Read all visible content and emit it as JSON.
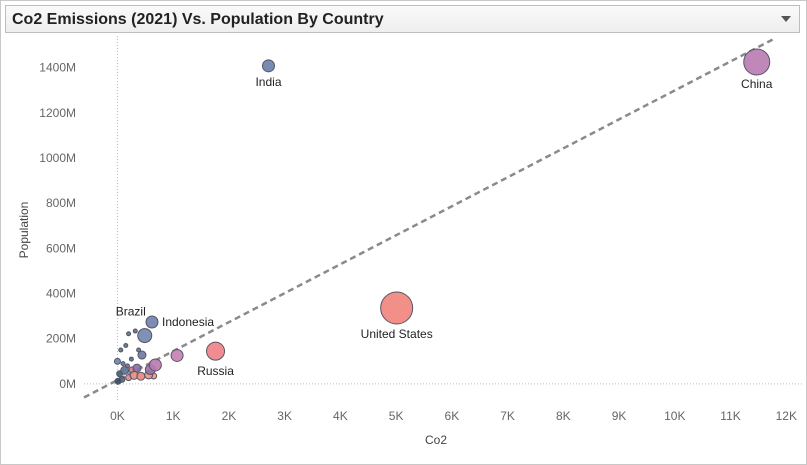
{
  "header": {
    "title": "Co2 Emissions (2021) Vs. Population By Country"
  },
  "chart_data": {
    "type": "scatter",
    "title": "Co2 Emissions (2021) Vs. Population By Country",
    "xlabel": "Co2",
    "ylabel": "Population",
    "xlim": [
      -600,
      12300
    ],
    "ylim": [
      -80,
      1540
    ],
    "x_ticks": [
      0,
      1000,
      2000,
      3000,
      4000,
      5000,
      6000,
      7000,
      8000,
      9000,
      10000,
      11000,
      12000
    ],
    "x_tick_labels": [
      "0K",
      "1K",
      "2K",
      "3K",
      "4K",
      "5K",
      "6K",
      "7K",
      "8K",
      "9K",
      "10K",
      "11K",
      "12K"
    ],
    "y_ticks": [
      0,
      200,
      400,
      600,
      800,
      1000,
      1200,
      1400
    ],
    "y_tick_labels": [
      "0M",
      "200M",
      "400M",
      "600M",
      "800M",
      "1000M",
      "1200M",
      "1400M"
    ],
    "grid": false,
    "trend_line": {
      "x": [
        -600,
        11800
      ],
      "y": [
        -60,
        1530
      ],
      "style": "dashed",
      "color": "#8a8a8a"
    },
    "points": [
      {
        "label": "China",
        "x": 11470,
        "y": 1425,
        "size": 13,
        "color": "#b87bb0"
      },
      {
        "label": "India",
        "x": 2710,
        "y": 1408,
        "size": 6,
        "color": "#6b7ea8"
      },
      {
        "label": "United States",
        "x": 5010,
        "y": 336,
        "size": 16,
        "color": "#f1837b"
      },
      {
        "label": "Russia",
        "x": 1760,
        "y": 145,
        "size": 9,
        "color": "#ee7f86"
      },
      {
        "label": "Indonesia",
        "x": 620,
        "y": 274,
        "size": 6,
        "color": "#6f80aa"
      },
      {
        "label": "Brazil",
        "x": 490,
        "y": 214,
        "size": 7,
        "color": "#7185ad"
      },
      {
        "label": "",
        "x": 1070,
        "y": 126,
        "size": 6,
        "color": "#c77fb4"
      },
      {
        "label": "",
        "x": 680,
        "y": 84,
        "size": 6,
        "color": "#b87ab0"
      },
      {
        "label": "",
        "x": 590,
        "y": 64,
        "size": 5,
        "color": "#9a6fa8"
      },
      {
        "label": "",
        "x": 440,
        "y": 128,
        "size": 4,
        "color": "#6b78a2"
      },
      {
        "label": "",
        "x": 350,
        "y": 70,
        "size": 4,
        "color": "#8a6aa0"
      },
      {
        "label": "",
        "x": 300,
        "y": 38,
        "size": 4,
        "color": "#e6897e"
      },
      {
        "label": "",
        "x": 420,
        "y": 34,
        "size": 4,
        "color": "#e58a7c"
      },
      {
        "label": "",
        "x": 560,
        "y": 40,
        "size": 4,
        "color": "#f0927f"
      },
      {
        "label": "",
        "x": 650,
        "y": 35,
        "size": 3,
        "color": "#e79a77"
      },
      {
        "label": "",
        "x": 0,
        "y": 100,
        "size": 3,
        "color": "#6a86a8"
      },
      {
        "label": "",
        "x": 130,
        "y": 60,
        "size": 4,
        "color": "#55708f"
      },
      {
        "label": "",
        "x": 200,
        "y": 28,
        "size": 3,
        "color": "#d88a86"
      },
      {
        "label": "",
        "x": 80,
        "y": 20,
        "size": 3,
        "color": "#4c6580"
      },
      {
        "label": "",
        "x": 250,
        "y": 110,
        "size": 2,
        "color": "#556b88"
      },
      {
        "label": "",
        "x": 150,
        "y": 170,
        "size": 2,
        "color": "#5b6f8c"
      },
      {
        "label": "",
        "x": 200,
        "y": 222,
        "size": 2,
        "color": "#5b6f8c"
      },
      {
        "label": "",
        "x": 320,
        "y": 234,
        "size": 2,
        "color": "#5b6f8c"
      },
      {
        "label": "",
        "x": 60,
        "y": 150,
        "size": 2,
        "color": "#5b6f8c"
      },
      {
        "label": "",
        "x": 40,
        "y": 45,
        "size": 3,
        "color": "#3f5a78"
      },
      {
        "label": "",
        "x": 10,
        "y": 12,
        "size": 3,
        "color": "#2f4763"
      },
      {
        "label": "",
        "x": 100,
        "y": 90,
        "size": 2,
        "color": "#5e7a98"
      },
      {
        "label": "",
        "x": 380,
        "y": 150,
        "size": 2,
        "color": "#6a6a9a"
      },
      {
        "label": "",
        "x": 260,
        "y": 62,
        "size": 3,
        "color": "#cf7c8e"
      },
      {
        "label": "",
        "x": 180,
        "y": 80,
        "size": 2,
        "color": "#7a6a9a"
      }
    ]
  }
}
